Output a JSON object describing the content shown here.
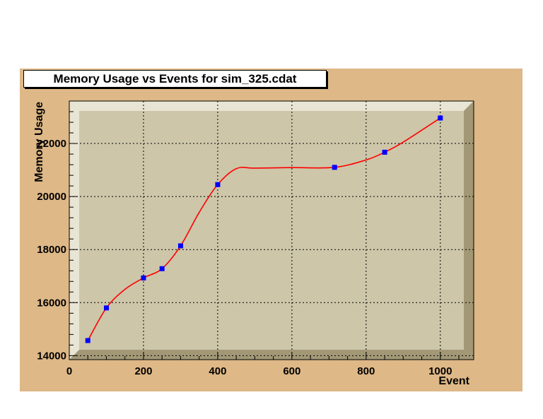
{
  "colors": {
    "canvas": "#deb887",
    "frame": "#cdc6a9",
    "frame_light": "#e9e5d4",
    "frame_dark": "#a29876",
    "line": "#ff0000",
    "marker": "#0000ff"
  },
  "chart_data": {
    "type": "line",
    "title": "Memory Usage vs Events for sim_325.cdat",
    "xlabel": "Event",
    "ylabel": "Memory Usage",
    "xlim": [
      0,
      1090
    ],
    "ylim": [
      13850,
      23600
    ],
    "grid": true,
    "x_ticks": [
      0,
      200,
      400,
      600,
      800,
      1000
    ],
    "y_ticks": [
      14000,
      16000,
      18000,
      20000,
      22000
    ],
    "series": [
      {
        "x": [
          50,
          100,
          200,
          250,
          300,
          400,
          715,
          850,
          1000
        ],
        "values": [
          14570,
          15800,
          16930,
          17280,
          18140,
          20450,
          21100,
          21670,
          22960
        ]
      }
    ],
    "curve": {
      "x": [
        50,
        100,
        150,
        200,
        250,
        300,
        350,
        400,
        450,
        500,
        600,
        715,
        800,
        850,
        900,
        1000
      ],
      "values": [
        14570,
        15800,
        16500,
        16930,
        17280,
        18140,
        19400,
        20450,
        21050,
        21070,
        21090,
        21100,
        21380,
        21670,
        22050,
        22960
      ]
    }
  }
}
